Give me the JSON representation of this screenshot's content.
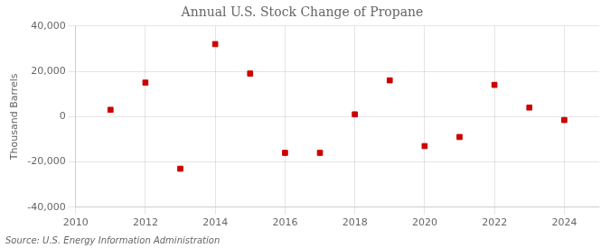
{
  "chart_data": {
    "type": "scatter",
    "title": "Annual U.S. Stock Change of Propane",
    "ylabel": "Thousand Barrels",
    "source": "Source: U.S. Energy Information Administration",
    "x": [
      2011,
      2012,
      2013,
      2014,
      2015,
      2016,
      2017,
      2018,
      2019,
      2020,
      2021,
      2022,
      2023,
      2024
    ],
    "values": [
      3000,
      15000,
      -23000,
      32000,
      19000,
      -16000,
      -16000,
      1000,
      16000,
      -13000,
      -9000,
      14000,
      4000,
      -1500
    ],
    "color": "#cc0000",
    "marker": "square",
    "xlim": [
      2010,
      2025
    ],
    "ylim": [
      -40000,
      40000
    ],
    "xticks": [
      2010,
      2012,
      2014,
      2016,
      2018,
      2020,
      2022,
      2024
    ],
    "yticks": [
      {
        "value": -40000,
        "label": "-40,000"
      },
      {
        "value": -20000,
        "label": "-20,000"
      },
      0,
      {
        "value": 20000,
        "label": "20,000"
      },
      {
        "value": 40000,
        "label": "40,000"
      }
    ],
    "grid": true
  }
}
